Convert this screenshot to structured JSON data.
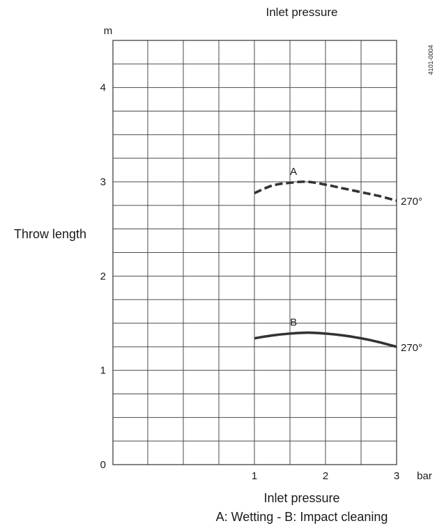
{
  "chart_data": {
    "type": "line",
    "title": "Inlet pressure",
    "xlabel": "Inlet pressure",
    "ylabel": "Throw length",
    "y_unit": "m",
    "x_unit": "bar",
    "caption": "A: Wetting - B: Impact cleaning",
    "code": "4101-0004",
    "xlim": [
      -0.99,
      3
    ],
    "ylim": [
      0,
      4.5
    ],
    "x_ticks": [
      1,
      2,
      3
    ],
    "x_tick_labels": [
      "1",
      "2",
      "3"
    ],
    "y_ticks": [
      0,
      1,
      2,
      3,
      4
    ],
    "y_tick_labels": [
      "0",
      "1",
      "2",
      "3",
      "4"
    ],
    "grid": true,
    "x_gridlines": [
      -0.5,
      0,
      0.5,
      1,
      1.5,
      2,
      2.5,
      3
    ],
    "y_gridlines": [
      0.25,
      0.5,
      0.75,
      1,
      1.25,
      1.5,
      1.75,
      2,
      2.25,
      2.5,
      2.75,
      3,
      3.25,
      3.5,
      3.75,
      4,
      4.25
    ],
    "series": [
      {
        "name": "A",
        "style": "dashed",
        "end_label": "270°",
        "x": [
          1,
          1.25,
          1.5,
          1.75,
          2,
          2.25,
          2.5,
          2.75,
          3
        ],
        "y": [
          2.88,
          2.96,
          2.99,
          3.0,
          2.97,
          2.93,
          2.89,
          2.85,
          2.8
        ]
      },
      {
        "name": "B",
        "style": "solid",
        "end_label": "270°",
        "x": [
          1,
          1.25,
          1.5,
          1.75,
          2,
          2.25,
          2.5,
          2.75,
          3
        ],
        "y": [
          1.34,
          1.37,
          1.39,
          1.4,
          1.39,
          1.37,
          1.34,
          1.3,
          1.25
        ]
      }
    ],
    "colors": {
      "line": "#333333",
      "grid": "#4a4a4a",
      "text": "#1a1a1a"
    }
  }
}
